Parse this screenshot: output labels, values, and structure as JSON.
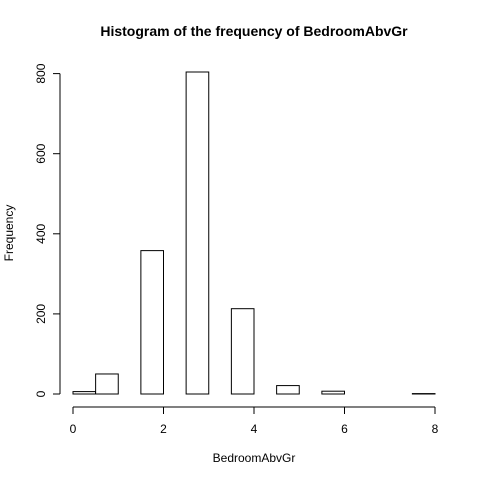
{
  "chart_data": {
    "type": "bar",
    "title": "Histogram of the frequency of BedroomAbvGr",
    "xlabel": "BedroomAbvGr",
    "ylabel": "Frequency",
    "bins": [
      {
        "from": 0.0,
        "to": 0.5,
        "count": 6
      },
      {
        "from": 0.5,
        "to": 1.0,
        "count": 50
      },
      {
        "from": 1.0,
        "to": 1.5,
        "count": 0
      },
      {
        "from": 1.5,
        "to": 2.0,
        "count": 358
      },
      {
        "from": 2.0,
        "to": 2.5,
        "count": 0
      },
      {
        "from": 2.5,
        "to": 3.0,
        "count": 804
      },
      {
        "from": 3.0,
        "to": 3.5,
        "count": 0
      },
      {
        "from": 3.5,
        "to": 4.0,
        "count": 213
      },
      {
        "from": 4.0,
        "to": 4.5,
        "count": 0
      },
      {
        "from": 4.5,
        "to": 5.0,
        "count": 21
      },
      {
        "from": 5.0,
        "to": 5.5,
        "count": 0
      },
      {
        "from": 5.5,
        "to": 6.0,
        "count": 7
      },
      {
        "from": 6.0,
        "to": 6.5,
        "count": 0
      },
      {
        "from": 6.5,
        "to": 7.0,
        "count": 0
      },
      {
        "from": 7.0,
        "to": 7.5,
        "count": 0
      },
      {
        "from": 7.5,
        "to": 8.0,
        "count": 1
      }
    ],
    "xlim": [
      0,
      8
    ],
    "ylim": [
      0,
      804
    ],
    "x_ticks": [
      0,
      2,
      4,
      6,
      8
    ],
    "y_ticks": [
      0,
      200,
      400,
      600,
      800
    ],
    "grid": false,
    "bar_fill": "#ffffff",
    "bar_stroke": "#000000"
  }
}
